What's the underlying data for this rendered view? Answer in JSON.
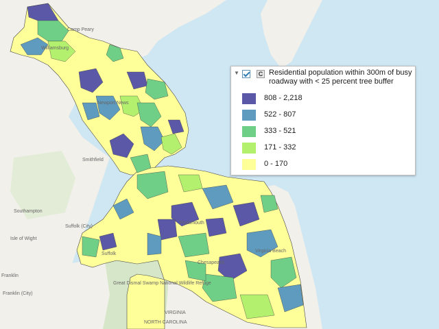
{
  "map": {
    "place_labels": [
      "Camp Peary",
      "Williamsburg",
      "Newport News",
      "Smithfield",
      "Suffolk (City)",
      "Suffolk",
      "Chesapeake",
      "Portsmouth",
      "Virginia Beach",
      "Franklin",
      "Franklin (City)",
      "Great Dismal Swamp National Wildlife Refuge",
      "NORTH CAROLINA",
      "VIRGINIA",
      "Isle of Wight",
      "Southampton"
    ],
    "colors": {
      "water": "#cfe6f3",
      "land": "#f2f1ec",
      "road": "#e8c98f",
      "forest": "#d9e8cf",
      "class_1": "#ffff99",
      "class_2": "#b3f06e",
      "class_3": "#6fcf86",
      "class_4": "#5e9bbf",
      "class_5": "#5a58a7"
    }
  },
  "legend": {
    "title": "Residential population within 300m of busy roadway with < 25 percent tree buffer",
    "layer_badge": "C",
    "classes": [
      {
        "label": "808 - 2,218",
        "color": "#5a58a7"
      },
      {
        "label": "522 - 807",
        "color": "#5e9bbf"
      },
      {
        "label": "333 - 521",
        "color": "#6fcf86"
      },
      {
        "label": "171 - 332",
        "color": "#b3f06e"
      },
      {
        "label": "0 - 170",
        "color": "#ffff99"
      }
    ]
  }
}
